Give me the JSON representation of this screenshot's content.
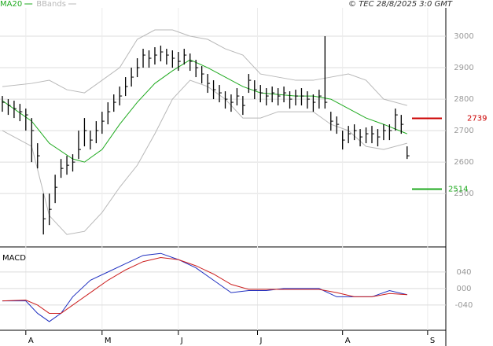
{
  "header": {
    "source": "© TEC 28/8/2025 3:0 GMT"
  },
  "chart_data": [
    {
      "type": "ohlc",
      "xlim": [
        -0.4,
        75.6
      ],
      "xticks": [
        {
          "value": 4,
          "label": "A"
        },
        {
          "value": 17,
          "label": "M"
        },
        {
          "value": 30,
          "label": "J"
        },
        {
          "value": 43.5,
          "label": "J"
        },
        {
          "value": 58,
          "label": "A"
        },
        {
          "value": 72.5,
          "label": "S"
        }
      ],
      "ylim": [
        2333,
        3090
      ],
      "yticks": [
        2500,
        2600,
        2700,
        2800,
        2900,
        3000
      ],
      "grid": true,
      "x": [
        0,
        1,
        2,
        3,
        4,
        5,
        6,
        7,
        8,
        9,
        10,
        11,
        12,
        13,
        14,
        15,
        16,
        17,
        18,
        19,
        20,
        21,
        22,
        23,
        24,
        25,
        26,
        27,
        28,
        29,
        30,
        31,
        32,
        33,
        34,
        35,
        36,
        37,
        38,
        39,
        40,
        41,
        42,
        43,
        44,
        45,
        46,
        47,
        48,
        49,
        50,
        51,
        52,
        53,
        54,
        55,
        56,
        57,
        58,
        59,
        60,
        61,
        62,
        63,
        64,
        65,
        66,
        67,
        68,
        69
      ],
      "high": [
        2810,
        2800,
        2795,
        2785,
        2770,
        2740,
        2660,
        2500,
        2500,
        2560,
        2610,
        2620,
        2625,
        2700,
        2740,
        2700,
        2730,
        2760,
        2790,
        2815,
        2840,
        2870,
        2900,
        2930,
        2960,
        2955,
        2965,
        2970,
        2960,
        2955,
        2950,
        2960,
        2945,
        2925,
        2905,
        2880,
        2860,
        2845,
        2825,
        2815,
        2835,
        2810,
        2880,
        2860,
        2845,
        2835,
        2840,
        2835,
        2840,
        2825,
        2830,
        2835,
        2825,
        2815,
        2830,
        3000,
        2760,
        2745,
        2700,
        2715,
        2720,
        2705,
        2710,
        2715,
        2705,
        2720,
        2720,
        2770,
        2750,
        2650
      ],
      "low": [
        2760,
        2750,
        2740,
        2730,
        2700,
        2600,
        2580,
        2370,
        2400,
        2470,
        2550,
        2560,
        2570,
        2610,
        2650,
        2640,
        2660,
        2690,
        2720,
        2760,
        2780,
        2810,
        2840,
        2870,
        2900,
        2900,
        2910,
        2920,
        2910,
        2900,
        2890,
        2910,
        2890,
        2870,
        2850,
        2820,
        2800,
        2790,
        2770,
        2760,
        2780,
        2750,
        2820,
        2800,
        2790,
        2780,
        2790,
        2780,
        2790,
        2770,
        2780,
        2780,
        2770,
        2760,
        2770,
        2770,
        2700,
        2690,
        2640,
        2660,
        2670,
        2650,
        2660,
        2660,
        2650,
        2670,
        2670,
        2700,
        2690,
        2610
      ],
      "close": [
        2790,
        2780,
        2770,
        2760,
        2750,
        2700,
        2620,
        2420,
        2450,
        2520,
        2580,
        2590,
        2600,
        2640,
        2700,
        2670,
        2700,
        2730,
        2760,
        2790,
        2810,
        2840,
        2870,
        2900,
        2940,
        2930,
        2940,
        2950,
        2940,
        2930,
        2920,
        2940,
        2920,
        2900,
        2880,
        2850,
        2830,
        2820,
        2800,
        2790,
        2810,
        2780,
        2860,
        2830,
        2820,
        2810,
        2820,
        2810,
        2820,
        2800,
        2810,
        2810,
        2800,
        2790,
        2810,
        2790,
        2730,
        2720,
        2670,
        2690,
        2700,
        2680,
        2690,
        2690,
        2680,
        2700,
        2700,
        2750,
        2720,
        2620
      ],
      "bar_color": "#000000",
      "series": [
        {
          "name": "MA20",
          "color": "#1faa1f",
          "x": [
            0,
            5,
            8,
            12,
            14,
            17,
            20,
            23,
            26,
            29,
            32,
            35,
            38,
            41,
            44,
            47,
            50,
            53,
            56,
            59,
            62,
            65,
            69
          ],
          "values": [
            2795,
            2730,
            2660,
            2610,
            2600,
            2640,
            2720,
            2790,
            2850,
            2890,
            2925,
            2900,
            2870,
            2840,
            2820,
            2815,
            2810,
            2810,
            2800,
            2770,
            2740,
            2720,
            2690
          ]
        },
        {
          "name": "BBands",
          "color": "#b8b8b8",
          "x": [
            0,
            5,
            8,
            11,
            14,
            17,
            20,
            23,
            26,
            29,
            32,
            35,
            38,
            41,
            44,
            47,
            50,
            53,
            56,
            59,
            62,
            65,
            69
          ],
          "upper": [
            2840,
            2850,
            2860,
            2830,
            2820,
            2860,
            2900,
            2990,
            3020,
            3020,
            3000,
            2990,
            2960,
            2940,
            2880,
            2870,
            2860,
            2860,
            2870,
            2880,
            2860,
            2800,
            2780
          ],
          "lower": [
            2700,
            2650,
            2430,
            2370,
            2380,
            2440,
            2520,
            2590,
            2690,
            2800,
            2860,
            2840,
            2800,
            2740,
            2740,
            2760,
            2760,
            2760,
            2720,
            2700,
            2650,
            2640,
            2660
          ]
        }
      ],
      "levels": [
        {
          "value": 2739,
          "color": "#cc0000"
        },
        {
          "value": 2514,
          "color": "#1faa1f"
        }
      ]
    },
    {
      "type": "line",
      "title": "MACD",
      "xlim": [
        -0.4,
        75.6
      ],
      "ylim": [
        -101,
        93
      ],
      "yticks": [
        {
          "value": 40,
          "label": "040"
        },
        {
          "value": 0,
          "label": "000"
        },
        {
          "value": -40,
          "label": "-040"
        }
      ],
      "grid": true,
      "series": [
        {
          "color": "#1f2fc0",
          "x": [
            0,
            4,
            6,
            8,
            10,
            12,
            15,
            18,
            21,
            24,
            27,
            30,
            33,
            36,
            39,
            42,
            45,
            48,
            51,
            54,
            57,
            60,
            63,
            66,
            69
          ],
          "values": [
            -30,
            -30,
            -60,
            -80,
            -60,
            -20,
            20,
            40,
            60,
            80,
            85,
            70,
            50,
            20,
            -10,
            -5,
            -5,
            0,
            0,
            0,
            -20,
            -20,
            -20,
            -5,
            -15
          ]
        },
        {
          "color": "#cc1f1f",
          "x": [
            0,
            4,
            6,
            8,
            10,
            12,
            15,
            18,
            21,
            24,
            27,
            30,
            33,
            36,
            39,
            42,
            45,
            48,
            51,
            54,
            57,
            60,
            63,
            66,
            69
          ],
          "values": [
            -30,
            -28,
            -40,
            -60,
            -60,
            -40,
            -10,
            20,
            45,
            65,
            75,
            70,
            55,
            35,
            10,
            -2,
            -2,
            -2,
            -2,
            -2,
            -10,
            -20,
            -20,
            -12,
            -15
          ]
        }
      ]
    }
  ]
}
